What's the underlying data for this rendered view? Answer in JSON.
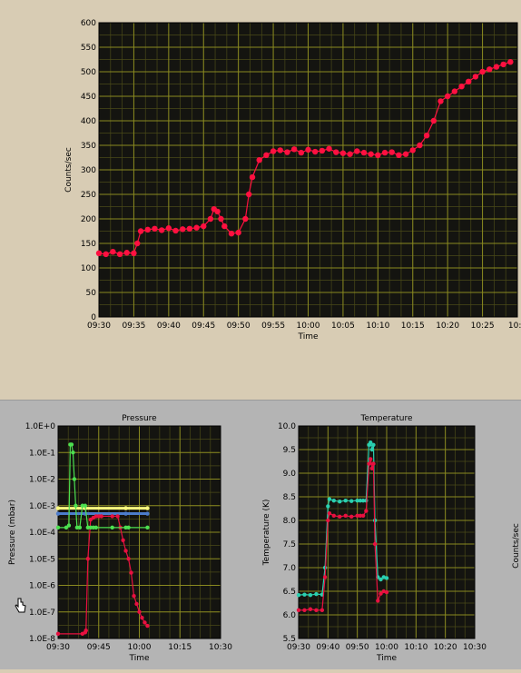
{
  "charts": {
    "main": {
      "ylabel": "Counts/sec",
      "xlabel": "Time",
      "yticks": [
        "0",
        "50",
        "100",
        "150",
        "200",
        "250",
        "300",
        "350",
        "400",
        "450",
        "500",
        "550",
        "600"
      ],
      "xticks": [
        "09:30",
        "09:35",
        "09:40",
        "09:45",
        "09:50",
        "09:55",
        "10:00",
        "10:05",
        "10:10",
        "10:15",
        "10:20",
        "10:25",
        "10:3"
      ]
    },
    "pressure": {
      "title": "Pressure",
      "ylabel": "Pressure (mbar)",
      "xlabel": "Time",
      "yticks": [
        "1.0E+0",
        "1.0E-1",
        "1.0E-2",
        "1.0E-3",
        "1.0E-4",
        "1.0E-5",
        "1.0E-6",
        "1.0E-7",
        "1.0E-8"
      ],
      "xticks": [
        "09:30",
        "09:45",
        "10:00",
        "10:15",
        "10:30"
      ]
    },
    "temperature": {
      "title": "Temperature",
      "ylabel": "Temperature (K)",
      "xlabel": "Time",
      "yticks": [
        "10.0",
        "9.5",
        "9.0",
        "8.5",
        "8.0",
        "7.5",
        "7.0",
        "6.5",
        "6.0",
        "5.5"
      ],
      "xticks": [
        "09:30",
        "09:40",
        "09:50",
        "10:00",
        "10:10",
        "10:20",
        "10:30"
      ]
    },
    "side_label": "Counts/sec"
  },
  "chart_data": [
    {
      "type": "scatter",
      "xlabel": "Time",
      "ylabel": "Counts/sec",
      "xlim_min": [
        0,
        60
      ],
      "ylim": [
        0,
        600
      ],
      "grid": true,
      "series": [
        {
          "color": "#ff1040",
          "x": [
            0,
            1,
            2,
            3,
            4,
            5,
            5.5,
            6,
            7,
            8,
            9,
            10,
            11,
            12,
            13,
            14,
            15,
            16,
            16.5,
            17,
            17.5,
            18,
            19,
            20,
            21,
            21.5,
            22,
            23,
            24,
            25,
            26,
            27,
            28,
            29,
            30,
            31,
            32,
            33,
            34,
            35,
            36,
            37,
            38,
            39,
            40,
            41,
            42,
            43,
            44,
            45,
            46,
            47,
            48,
            49,
            50,
            51,
            52,
            53,
            54,
            55,
            56,
            57,
            58,
            59
          ],
          "y": [
            130,
            128,
            133,
            128,
            131,
            130,
            150,
            175,
            178,
            180,
            177,
            181,
            176,
            179,
            180,
            182,
            185,
            200,
            220,
            215,
            200,
            185,
            170,
            172,
            200,
            250,
            285,
            320,
            330,
            338,
            340,
            336,
            342,
            335,
            341,
            337,
            339,
            343,
            336,
            334,
            332,
            338,
            335,
            332,
            330,
            335,
            336,
            330,
            332,
            340,
            350,
            370,
            400,
            440,
            450,
            460,
            470,
            480,
            490,
            500,
            505,
            510,
            515,
            520
          ]
        }
      ]
    },
    {
      "type": "line",
      "title": "Pressure",
      "xlabel": "Time",
      "ylabel": "Pressure (mbar)",
      "yscale": "log",
      "ylim": [
        1e-08,
        1
      ],
      "series": [
        {
          "color": "#ffff80",
          "x": [
            0,
            10,
            25,
            33
          ],
          "y": [
            0.0008,
            0.0008,
            0.0008,
            0.0008
          ]
        },
        {
          "color": "#4c7ccc",
          "x": [
            0,
            10,
            25,
            33
          ],
          "y": [
            0.0005,
            0.0005,
            0.0005,
            0.0005
          ]
        },
        {
          "color": "#e81040",
          "x": [
            0,
            9,
            10,
            10.3,
            11,
            12,
            13,
            14,
            15,
            16,
            20,
            22,
            23,
            24,
            25,
            26,
            27,
            28,
            29,
            30,
            31,
            32,
            33
          ],
          "y": [
            1.5e-08,
            1.5e-08,
            1.7e-08,
            2e-08,
            1e-05,
            0.0003,
            0.00035,
            0.0004,
            0.0004,
            0.0004,
            0.0004,
            0.0004,
            0.00015,
            5e-05,
            2e-05,
            1e-05,
            3e-06,
            4e-07,
            2e-07,
            1e-07,
            6e-08,
            4e-08,
            3e-08
          ]
        },
        {
          "color": "#4ce050",
          "x": [
            0,
            3,
            4,
            4.5,
            5,
            5.5,
            6,
            6.5,
            7,
            8,
            9,
            10,
            11,
            12,
            13,
            14,
            20,
            25,
            26,
            33
          ],
          "y": [
            0.00015,
            0.00015,
            0.00018,
            0.2,
            0.2,
            0.1,
            0.01,
            0.001,
            0.00015,
            0.00015,
            0.001,
            0.001,
            0.00015,
            0.00015,
            0.00015,
            0.00015,
            0.00015,
            0.00015,
            0.00015,
            0.00015
          ]
        }
      ]
    },
    {
      "type": "line",
      "title": "Temperature",
      "xlabel": "Time",
      "ylabel": "Temperature (K)",
      "ylim": [
        5.5,
        10.0
      ],
      "series": [
        {
          "color": "#2ad0b0",
          "x": [
            0,
            2,
            4,
            6,
            8,
            9,
            10,
            10.5,
            12,
            14,
            16,
            18,
            20,
            21,
            22,
            23,
            24,
            24.5,
            25,
            25.5,
            26,
            27,
            28,
            29,
            30
          ],
          "y": [
            6.42,
            6.43,
            6.42,
            6.44,
            6.43,
            7.0,
            8.3,
            8.45,
            8.42,
            8.4,
            8.42,
            8.41,
            8.42,
            8.42,
            8.42,
            8.42,
            9.6,
            9.65,
            9.5,
            9.6,
            8.0,
            6.8,
            6.75,
            6.8,
            6.78
          ]
        },
        {
          "color": "#e81040",
          "x": [
            0,
            2,
            4,
            6,
            8,
            9,
            10,
            10.5,
            12,
            14,
            16,
            18,
            20,
            21,
            22,
            23,
            24,
            24.5,
            25,
            25.5,
            26,
            27,
            28,
            29,
            30
          ],
          "y": [
            6.1,
            6.1,
            6.12,
            6.1,
            6.1,
            6.8,
            8.0,
            8.15,
            8.1,
            8.08,
            8.1,
            8.08,
            8.1,
            8.1,
            8.1,
            8.2,
            9.2,
            9.3,
            9.1,
            9.2,
            7.5,
            6.3,
            6.45,
            6.5,
            6.48
          ]
        }
      ]
    }
  ]
}
